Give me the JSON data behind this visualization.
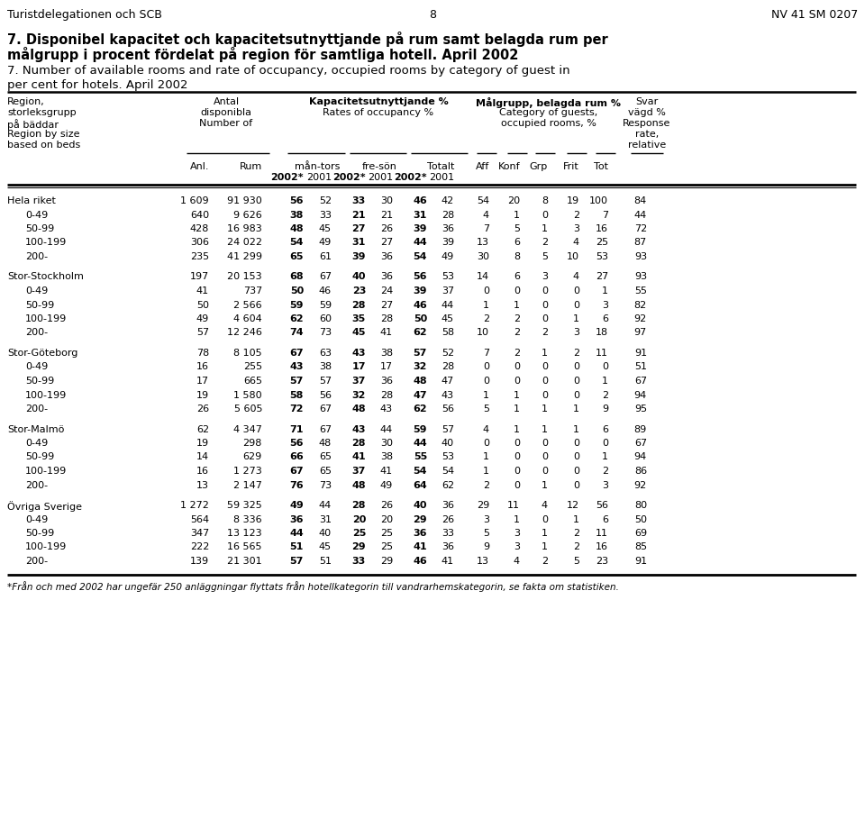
{
  "header_line1": "Turistdelegationen och SCB",
  "header_center": "8",
  "header_right": "NV 41 SM 0207",
  "title1": "7. Disponibel kapacitet och kapacitetsutnyttjande på rum samt belagda rum per",
  "title2": "målgrupp i procent fördelat på region för samtliga hotell. April 2002",
  "title3": "7. Number of available rooms and rate of occupancy, occupied rooms by category of guest in",
  "title4": "per cent for hotels. April 2002",
  "footnote": "*Från och med 2002 har ungefär 250 anläggningar flyttats från hotellkategorin till vandrarhemskategorin, se fakta om statistiken.",
  "rows": [
    {
      "label": "Hela riket",
      "indent": false,
      "anl": "1 609",
      "rum": "91 930",
      "mt02": 56,
      "mt01": 52,
      "fs02": 33,
      "fs01": 30,
      "tot02": 46,
      "tot01": 42,
      "aff": 54,
      "konf": 20,
      "grp": 8,
      "frit": 19,
      "tot": 100,
      "svar": 84
    },
    {
      "label": "0-49",
      "indent": true,
      "anl": "640",
      "rum": "9 626",
      "mt02": 38,
      "mt01": 33,
      "fs02": 21,
      "fs01": 21,
      "tot02": 31,
      "tot01": 28,
      "aff": 4,
      "konf": 1,
      "grp": 0,
      "frit": 2,
      "tot": 7,
      "svar": 44
    },
    {
      "label": "50-99",
      "indent": true,
      "anl": "428",
      "rum": "16 983",
      "mt02": 48,
      "mt01": 45,
      "fs02": 27,
      "fs01": 26,
      "tot02": 39,
      "tot01": 36,
      "aff": 7,
      "konf": 5,
      "grp": 1,
      "frit": 3,
      "tot": 16,
      "svar": 72
    },
    {
      "label": "100-199",
      "indent": true,
      "anl": "306",
      "rum": "24 022",
      "mt02": 54,
      "mt01": 49,
      "fs02": 31,
      "fs01": 27,
      "tot02": 44,
      "tot01": 39,
      "aff": 13,
      "konf": 6,
      "grp": 2,
      "frit": 4,
      "tot": 25,
      "svar": 87
    },
    {
      "label": "200-",
      "indent": true,
      "anl": "235",
      "rum": "41 299",
      "mt02": 65,
      "mt01": 61,
      "fs02": 39,
      "fs01": 36,
      "tot02": 54,
      "tot01": 49,
      "aff": 30,
      "konf": 8,
      "grp": 5,
      "frit": 10,
      "tot": 53,
      "svar": 93
    },
    {
      "label": "Stor-Stockholm",
      "indent": false,
      "anl": "197",
      "rum": "20 153",
      "mt02": 68,
      "mt01": 67,
      "fs02": 40,
      "fs01": 36,
      "tot02": 56,
      "tot01": 53,
      "aff": 14,
      "konf": 6,
      "grp": 3,
      "frit": 4,
      "tot": 27,
      "svar": 93
    },
    {
      "label": "0-49",
      "indent": true,
      "anl": "41",
      "rum": "737",
      "mt02": 50,
      "mt01": 46,
      "fs02": 23,
      "fs01": 24,
      "tot02": 39,
      "tot01": 37,
      "aff": 0,
      "konf": 0,
      "grp": 0,
      "frit": 0,
      "tot": 1,
      "svar": 55
    },
    {
      "label": "50-99",
      "indent": true,
      "anl": "50",
      "rum": "2 566",
      "mt02": 59,
      "mt01": 59,
      "fs02": 28,
      "fs01": 27,
      "tot02": 46,
      "tot01": 44,
      "aff": 1,
      "konf": 1,
      "grp": 0,
      "frit": 0,
      "tot": 3,
      "svar": 82
    },
    {
      "label": "100-199",
      "indent": true,
      "anl": "49",
      "rum": "4 604",
      "mt02": 62,
      "mt01": 60,
      "fs02": 35,
      "fs01": 28,
      "tot02": 50,
      "tot01": 45,
      "aff": 2,
      "konf": 2,
      "grp": 0,
      "frit": 1,
      "tot": 6,
      "svar": 92
    },
    {
      "label": "200-",
      "indent": true,
      "anl": "57",
      "rum": "12 246",
      "mt02": 74,
      "mt01": 73,
      "fs02": 45,
      "fs01": 41,
      "tot02": 62,
      "tot01": 58,
      "aff": 10,
      "konf": 2,
      "grp": 2,
      "frit": 3,
      "tot": 18,
      "svar": 97
    },
    {
      "label": "Stor-Göteborg",
      "indent": false,
      "anl": "78",
      "rum": "8 105",
      "mt02": 67,
      "mt01": 63,
      "fs02": 43,
      "fs01": 38,
      "tot02": 57,
      "tot01": 52,
      "aff": 7,
      "konf": 2,
      "grp": 1,
      "frit": 2,
      "tot": 11,
      "svar": 91
    },
    {
      "label": "0-49",
      "indent": true,
      "anl": "16",
      "rum": "255",
      "mt02": 43,
      "mt01": 38,
      "fs02": 17,
      "fs01": 17,
      "tot02": 32,
      "tot01": 28,
      "aff": 0,
      "konf": 0,
      "grp": 0,
      "frit": 0,
      "tot": 0,
      "svar": 51
    },
    {
      "label": "50-99",
      "indent": true,
      "anl": "17",
      "rum": "665",
      "mt02": 57,
      "mt01": 57,
      "fs02": 37,
      "fs01": 36,
      "tot02": 48,
      "tot01": 47,
      "aff": 0,
      "konf": 0,
      "grp": 0,
      "frit": 0,
      "tot": 1,
      "svar": 67
    },
    {
      "label": "100-199",
      "indent": true,
      "anl": "19",
      "rum": "1 580",
      "mt02": 58,
      "mt01": 56,
      "fs02": 32,
      "fs01": 28,
      "tot02": 47,
      "tot01": 43,
      "aff": 1,
      "konf": 1,
      "grp": 0,
      "frit": 0,
      "tot": 2,
      "svar": 94
    },
    {
      "label": "200-",
      "indent": true,
      "anl": "26",
      "rum": "5 605",
      "mt02": 72,
      "mt01": 67,
      "fs02": 48,
      "fs01": 43,
      "tot02": 62,
      "tot01": 56,
      "aff": 5,
      "konf": 1,
      "grp": 1,
      "frit": 1,
      "tot": 9,
      "svar": 95
    },
    {
      "label": "Stor-Malmö",
      "indent": false,
      "anl": "62",
      "rum": "4 347",
      "mt02": 71,
      "mt01": 67,
      "fs02": 43,
      "fs01": 44,
      "tot02": 59,
      "tot01": 57,
      "aff": 4,
      "konf": 1,
      "grp": 1,
      "frit": 1,
      "tot": 6,
      "svar": 89
    },
    {
      "label": "0-49",
      "indent": true,
      "anl": "19",
      "rum": "298",
      "mt02": 56,
      "mt01": 48,
      "fs02": 28,
      "fs01": 30,
      "tot02": 44,
      "tot01": 40,
      "aff": 0,
      "konf": 0,
      "grp": 0,
      "frit": 0,
      "tot": 0,
      "svar": 67
    },
    {
      "label": "50-99",
      "indent": true,
      "anl": "14",
      "rum": "629",
      "mt02": 66,
      "mt01": 65,
      "fs02": 41,
      "fs01": 38,
      "tot02": 55,
      "tot01": 53,
      "aff": 1,
      "konf": 0,
      "grp": 0,
      "frit": 0,
      "tot": 1,
      "svar": 94
    },
    {
      "label": "100-199",
      "indent": true,
      "anl": "16",
      "rum": "1 273",
      "mt02": 67,
      "mt01": 65,
      "fs02": 37,
      "fs01": 41,
      "tot02": 54,
      "tot01": 54,
      "aff": 1,
      "konf": 0,
      "grp": 0,
      "frit": 0,
      "tot": 2,
      "svar": 86
    },
    {
      "label": "200-",
      "indent": true,
      "anl": "13",
      "rum": "2 147",
      "mt02": 76,
      "mt01": 73,
      "fs02": 48,
      "fs01": 49,
      "tot02": 64,
      "tot01": 62,
      "aff": 2,
      "konf": 0,
      "grp": 1,
      "frit": 0,
      "tot": 3,
      "svar": 92
    },
    {
      "label": "Övriga Sverige",
      "indent": false,
      "anl": "1 272",
      "rum": "59 325",
      "mt02": 49,
      "mt01": 44,
      "fs02": 28,
      "fs01": 26,
      "tot02": 40,
      "tot01": 36,
      "aff": 29,
      "konf": 11,
      "grp": 4,
      "frit": 12,
      "tot": 56,
      "svar": 80
    },
    {
      "label": "0-49",
      "indent": true,
      "anl": "564",
      "rum": "8 336",
      "mt02": 36,
      "mt01": 31,
      "fs02": 20,
      "fs01": 20,
      "tot02": 29,
      "tot01": 26,
      "aff": 3,
      "konf": 1,
      "grp": 0,
      "frit": 1,
      "tot": 6,
      "svar": 50
    },
    {
      "label": "50-99",
      "indent": true,
      "anl": "347",
      "rum": "13 123",
      "mt02": 44,
      "mt01": 40,
      "fs02": 25,
      "fs01": 25,
      "tot02": 36,
      "tot01": 33,
      "aff": 5,
      "konf": 3,
      "grp": 1,
      "frit": 2,
      "tot": 11,
      "svar": 69
    },
    {
      "label": "100-199",
      "indent": true,
      "anl": "222",
      "rum": "16 565",
      "mt02": 51,
      "mt01": 45,
      "fs02": 29,
      "fs01": 25,
      "tot02": 41,
      "tot01": 36,
      "aff": 9,
      "konf": 3,
      "grp": 1,
      "frit": 2,
      "tot": 16,
      "svar": 85
    },
    {
      "label": "200-",
      "indent": true,
      "anl": "139",
      "rum": "21 301",
      "mt02": 57,
      "mt01": 51,
      "fs02": 33,
      "fs01": 29,
      "tot02": 46,
      "tot01": 41,
      "aff": 13,
      "konf": 4,
      "grp": 2,
      "frit": 5,
      "tot": 23,
      "svar": 91
    }
  ]
}
